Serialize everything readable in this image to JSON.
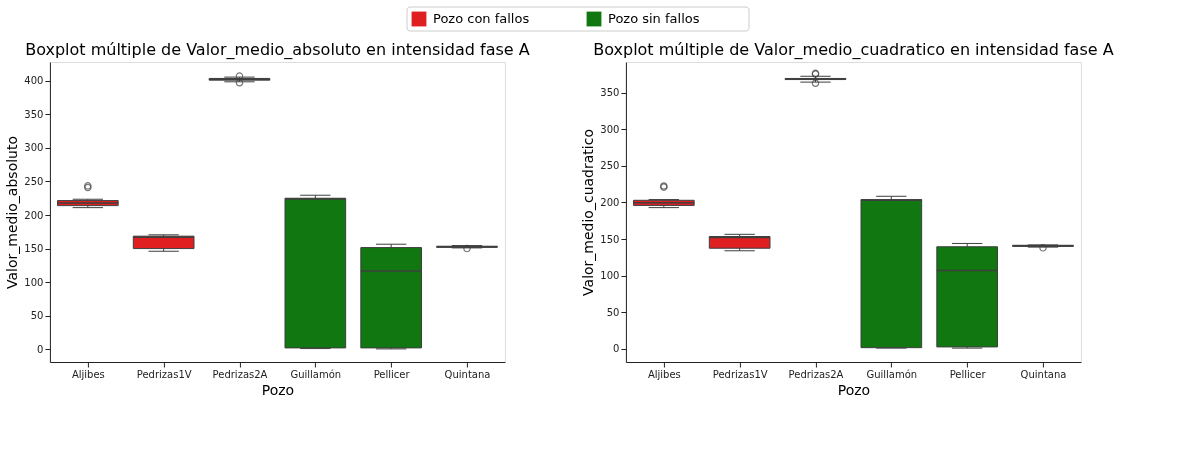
{
  "chart_data": [
    {
      "type": "box",
      "title": "Boxplot múltiple de Valor_medio_absoluto en intensidad fase A",
      "xlabel": "Pozo",
      "ylabel": "Valor_medio_absoluto",
      "categories": [
        "Aljibes",
        "Pedrizas1V",
        "Pedrizas2A",
        "Guillamón",
        "Pellicer",
        "Quintana"
      ],
      "ylim": [
        -19,
        428
      ],
      "yticks": [
        0,
        50,
        100,
        150,
        200,
        250,
        300,
        350,
        400
      ],
      "grid": false,
      "legend": "top",
      "series": [
        {
          "name": "Pozo con fallos",
          "color": "#e02020",
          "boxes": [
            {
              "low": 211,
              "q1": 214,
              "median": 218,
              "q3": 221.5,
              "high": 223.5,
              "outliers": [
                241,
                243.5
              ]
            },
            {
              "low": 146,
              "q1": 150,
              "median": 167,
              "q3": 168.5,
              "high": 170.5
            },
            {
              "low": 398.5,
              "q1": 401,
              "median": 402,
              "q3": 403.5,
              "high": 405.5,
              "outliers": [
                397,
                407
              ]
            },
            null,
            null,
            null
          ]
        },
        {
          "name": "Pozo sin fallos",
          "color": "#117711",
          "boxes": [
            null,
            null,
            null,
            {
              "low": 1,
              "q1": 2,
              "median": 224,
              "q3": 225,
              "high": 229.5
            },
            {
              "low": 0.5,
              "q1": 2,
              "median": 116.5,
              "q3": 151.5,
              "high": 156.5
            },
            {
              "low": 151,
              "q1": 152,
              "median": 152.5,
              "q3": 153.5,
              "high": 154.5,
              "outliers": [
                150
              ]
            }
          ]
        }
      ]
    },
    {
      "type": "box",
      "title": "Boxplot múltiple de Valor_medio_cuadratico en intensidad fase A",
      "xlabel": "Pozo",
      "ylabel": "Valor_medio_cuadratico",
      "categories": [
        "Aljibes",
        "Pedrizas1V",
        "Pedrizas2A",
        "Guillamón",
        "Pellicer",
        "Quintana"
      ],
      "ylim": [
        -18,
        392
      ],
      "yticks": [
        0,
        50,
        100,
        150,
        200,
        250,
        300,
        350
      ],
      "grid": false,
      "series": [
        {
          "name": "Pozo con fallos",
          "color": "#e02020",
          "boxes": [
            {
              "low": 193,
              "q1": 196,
              "median": 199.5,
              "q3": 203,
              "high": 204,
              "outliers": [
                221,
                222.5
              ]
            },
            {
              "low": 134,
              "q1": 137.5,
              "median": 152,
              "q3": 153.5,
              "high": 156.5
            },
            {
              "low": 364.5,
              "q1": 368,
              "median": 368.8,
              "q3": 369.5,
              "high": 372.5,
              "outliers": [
                363,
                375.5,
                376.5
              ]
            },
            null,
            null,
            null
          ]
        },
        {
          "name": "Pozo sin fallos",
          "color": "#117711",
          "boxes": [
            null,
            null,
            null,
            {
              "low": 1,
              "q1": 1.6,
              "median": 203,
              "q3": 204,
              "high": 208.5
            },
            {
              "low": 1,
              "q1": 2.6,
              "median": 107,
              "q3": 139.5,
              "high": 144
            },
            {
              "low": 139,
              "q1": 140,
              "median": 141,
              "q3": 141.5,
              "high": 142,
              "outliers": [
                138
              ]
            }
          ]
        }
      ]
    }
  ]
}
